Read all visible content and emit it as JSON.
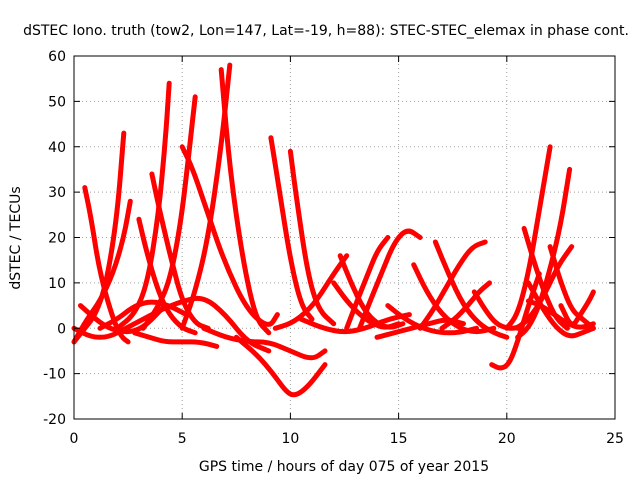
{
  "chart_data": {
    "type": "line",
    "title": "dSTEC Iono. truth (tow2, Lon=147, Lat=-19, h=88): STEC-STEC_elemax in phase cont.",
    "xlabel": "GPS time / hours of day 075 of year 2015",
    "ylabel": "dSTEC  / TECUs",
    "xlim": [
      0,
      25
    ],
    "ylim": [
      -20,
      60
    ],
    "xticks": [
      "0",
      "5",
      "10",
      "15",
      "20",
      "25"
    ],
    "yticks": [
      "-20",
      "-10",
      "0",
      "10",
      "20",
      "30",
      "40",
      "50",
      "60"
    ],
    "grid": true,
    "color": "#ff0000",
    "series": [
      {
        "x": [
          0.0,
          0.5,
          1.0,
          1.5,
          2.0,
          2.3
        ],
        "y": [
          -3,
          0,
          3,
          10,
          25,
          43
        ]
      },
      {
        "x": [
          0.5,
          0.8,
          1.2,
          1.8,
          2.2,
          2.5
        ],
        "y": [
          31,
          24,
          12,
          2,
          -2,
          -3
        ]
      },
      {
        "x": [
          0.0,
          0.6,
          1.2,
          1.8,
          2.3,
          2.6
        ],
        "y": [
          -3,
          2,
          6,
          12,
          20,
          28
        ]
      },
      {
        "x": [
          0.3,
          1.0,
          1.6,
          2.4,
          3.2,
          4.2
        ],
        "y": [
          5,
          2,
          0,
          -1,
          0,
          5
        ]
      },
      {
        "x": [
          3.0,
          3.4,
          3.9,
          4.4,
          5.0,
          5.6
        ],
        "y": [
          24,
          16,
          8,
          3,
          0,
          -1
        ]
      },
      {
        "x": [
          2.0,
          2.8,
          3.4,
          3.9,
          4.2,
          4.4
        ],
        "y": [
          0,
          3,
          10,
          25,
          40,
          54
        ]
      },
      {
        "x": [
          3.6,
          4.0,
          4.5,
          5.0,
          5.6,
          6.2
        ],
        "y": [
          34,
          25,
          15,
          6,
          1,
          0
        ]
      },
      {
        "x": [
          3.2,
          3.8,
          4.4,
          4.9,
          5.3,
          5.6
        ],
        "y": [
          0,
          4,
          10,
          22,
          38,
          51
        ]
      },
      {
        "x": [
          2.8,
          3.5,
          4.2,
          5.0,
          5.8,
          6.6
        ],
        "y": [
          -1,
          -2,
          -3,
          -3,
          -3,
          -4
        ]
      },
      {
        "x": [
          5.0,
          5.5,
          6.2,
          7.0,
          8.0,
          9.0,
          9.4
        ],
        "y": [
          40,
          35,
          25,
          14,
          4,
          0,
          3
        ]
      },
      {
        "x": [
          5.0,
          5.6,
          6.2,
          6.8,
          7.2
        ],
        "y": [
          0,
          8,
          20,
          40,
          58
        ]
      },
      {
        "x": [
          6.8,
          7.2,
          7.8,
          8.4,
          9.0
        ],
        "y": [
          57,
          35,
          15,
          2,
          -1
        ]
      },
      {
        "x": [
          4.0,
          5.0,
          6.0,
          7.0,
          8.0,
          9.0
        ],
        "y": [
          4,
          6,
          7,
          3,
          -3,
          -5
        ]
      },
      {
        "x": [
          6.0,
          7.0,
          8.0,
          9.0,
          10.0,
          11.0,
          11.6
        ],
        "y": [
          0,
          -2,
          -3,
          -3,
          -5,
          -7,
          -5
        ]
      },
      {
        "x": [
          7.5,
          8.5,
          9.2,
          9.8,
          10.2,
          10.8,
          11.6
        ],
        "y": [
          -2,
          -6,
          -10,
          -14,
          -15,
          -13,
          -8
        ]
      },
      {
        "x": [
          9.1,
          9.5,
          10.0,
          10.5,
          11.0
        ],
        "y": [
          42,
          30,
          15,
          5,
          2
        ]
      },
      {
        "x": [
          10.0,
          10.3,
          10.8,
          11.3,
          12.0
        ],
        "y": [
          39,
          28,
          12,
          4,
          1
        ]
      },
      {
        "x": [
          9.3,
          10.0,
          10.6,
          11.2,
          12.0,
          12.6
        ],
        "y": [
          0,
          1,
          3,
          6,
          12,
          16
        ]
      },
      {
        "x": [
          10.5,
          11.5,
          12.5,
          13.5,
          14.5,
          15.5
        ],
        "y": [
          2,
          0,
          -1,
          0,
          2,
          3
        ]
      },
      {
        "x": [
          12.3,
          12.8,
          13.4,
          14.0,
          14.6,
          15.2
        ],
        "y": [
          16,
          10,
          4,
          1,
          0,
          1
        ]
      },
      {
        "x": [
          12.6,
          13.0,
          13.5,
          14.0,
          14.5
        ],
        "y": [
          0,
          5,
          11,
          17,
          20
        ]
      },
      {
        "x": [
          13.2,
          13.6,
          14.2,
          14.8,
          15.4,
          16.0
        ],
        "y": [
          0,
          5,
          12,
          19,
          22,
          20
        ]
      },
      {
        "x": [
          12.0,
          12.6,
          13.2,
          13.8,
          14.4,
          15.0
        ],
        "y": [
          10,
          6,
          3,
          1,
          0,
          1
        ]
      },
      {
        "x": [
          14.0,
          14.8,
          15.6,
          16.4,
          17.2,
          18.0
        ],
        "y": [
          -2,
          -1,
          0,
          1,
          2,
          1
        ]
      },
      {
        "x": [
          14.5,
          15.3,
          16.1,
          16.9,
          17.8,
          18.6
        ],
        "y": [
          5,
          2,
          0,
          -1,
          -1,
          0
        ]
      },
      {
        "x": [
          15.7,
          16.3,
          17.0,
          17.8,
          18.6,
          19.4
        ],
        "y": [
          14,
          8,
          3,
          0,
          -1,
          0
        ]
      },
      {
        "x": [
          16.7,
          17.3,
          18.0,
          18.7,
          19.4,
          20.0
        ],
        "y": [
          19,
          12,
          5,
          1,
          -1,
          -2
        ]
      },
      {
        "x": [
          16.0,
          16.6,
          17.2,
          17.8,
          18.4,
          19.0
        ],
        "y": [
          0,
          4,
          9,
          14,
          18,
          19
        ]
      },
      {
        "x": [
          17.0,
          17.6,
          18.2,
          18.7,
          19.2
        ],
        "y": [
          0,
          2,
          5,
          8,
          10
        ]
      },
      {
        "x": [
          18.5,
          19.0,
          19.5,
          20.0,
          20.5,
          21.0
        ],
        "y": [
          8,
          4,
          1,
          0,
          0,
          2
        ]
      },
      {
        "x": [
          19.3,
          19.7,
          20.1,
          20.5,
          21.0,
          21.5
        ],
        "y": [
          -8,
          -9,
          -8,
          -3,
          5,
          12
        ]
      },
      {
        "x": [
          20.0,
          20.5,
          21.0,
          21.5,
          22.0
        ],
        "y": [
          0,
          3,
          12,
          26,
          40
        ]
      },
      {
        "x": [
          20.5,
          21.0,
          21.5,
          22.0,
          22.5,
          22.9
        ],
        "y": [
          -2,
          0,
          5,
          13,
          23,
          35
        ]
      },
      {
        "x": [
          20.8,
          21.3,
          21.8,
          22.3,
          22.8
        ],
        "y": [
          22,
          14,
          7,
          2,
          0
        ]
      },
      {
        "x": [
          20.5,
          21.2,
          21.8,
          22.4,
          23.0
        ],
        "y": [
          0,
          3,
          8,
          14,
          18
        ]
      },
      {
        "x": [
          21.0,
          21.6,
          22.2,
          22.8,
          23.4,
          24.0
        ],
        "y": [
          6,
          5,
          3,
          1,
          0,
          1
        ]
      },
      {
        "x": [
          22.0,
          22.5,
          23.0,
          23.5,
          24.0
        ],
        "y": [
          18,
          10,
          4,
          2,
          0
        ]
      },
      {
        "x": [
          22.5,
          23.0,
          23.4,
          23.8,
          24.0
        ],
        "y": [
          5,
          0,
          3,
          6,
          8
        ]
      },
      {
        "x": [
          21.0,
          21.7,
          22.3,
          22.9,
          23.5,
          24.0
        ],
        "y": [
          10,
          4,
          0,
          -2,
          -1,
          0
        ]
      },
      {
        "x": [
          0.0,
          0.8,
          1.6,
          2.4,
          3.2,
          4.0
        ],
        "y": [
          0,
          -2,
          -2,
          0,
          2,
          4
        ]
      },
      {
        "x": [
          1.2,
          2.0,
          2.8,
          3.6,
          4.4,
          5.2
        ],
        "y": [
          0,
          2,
          5,
          6,
          5,
          3
        ]
      }
    ]
  }
}
